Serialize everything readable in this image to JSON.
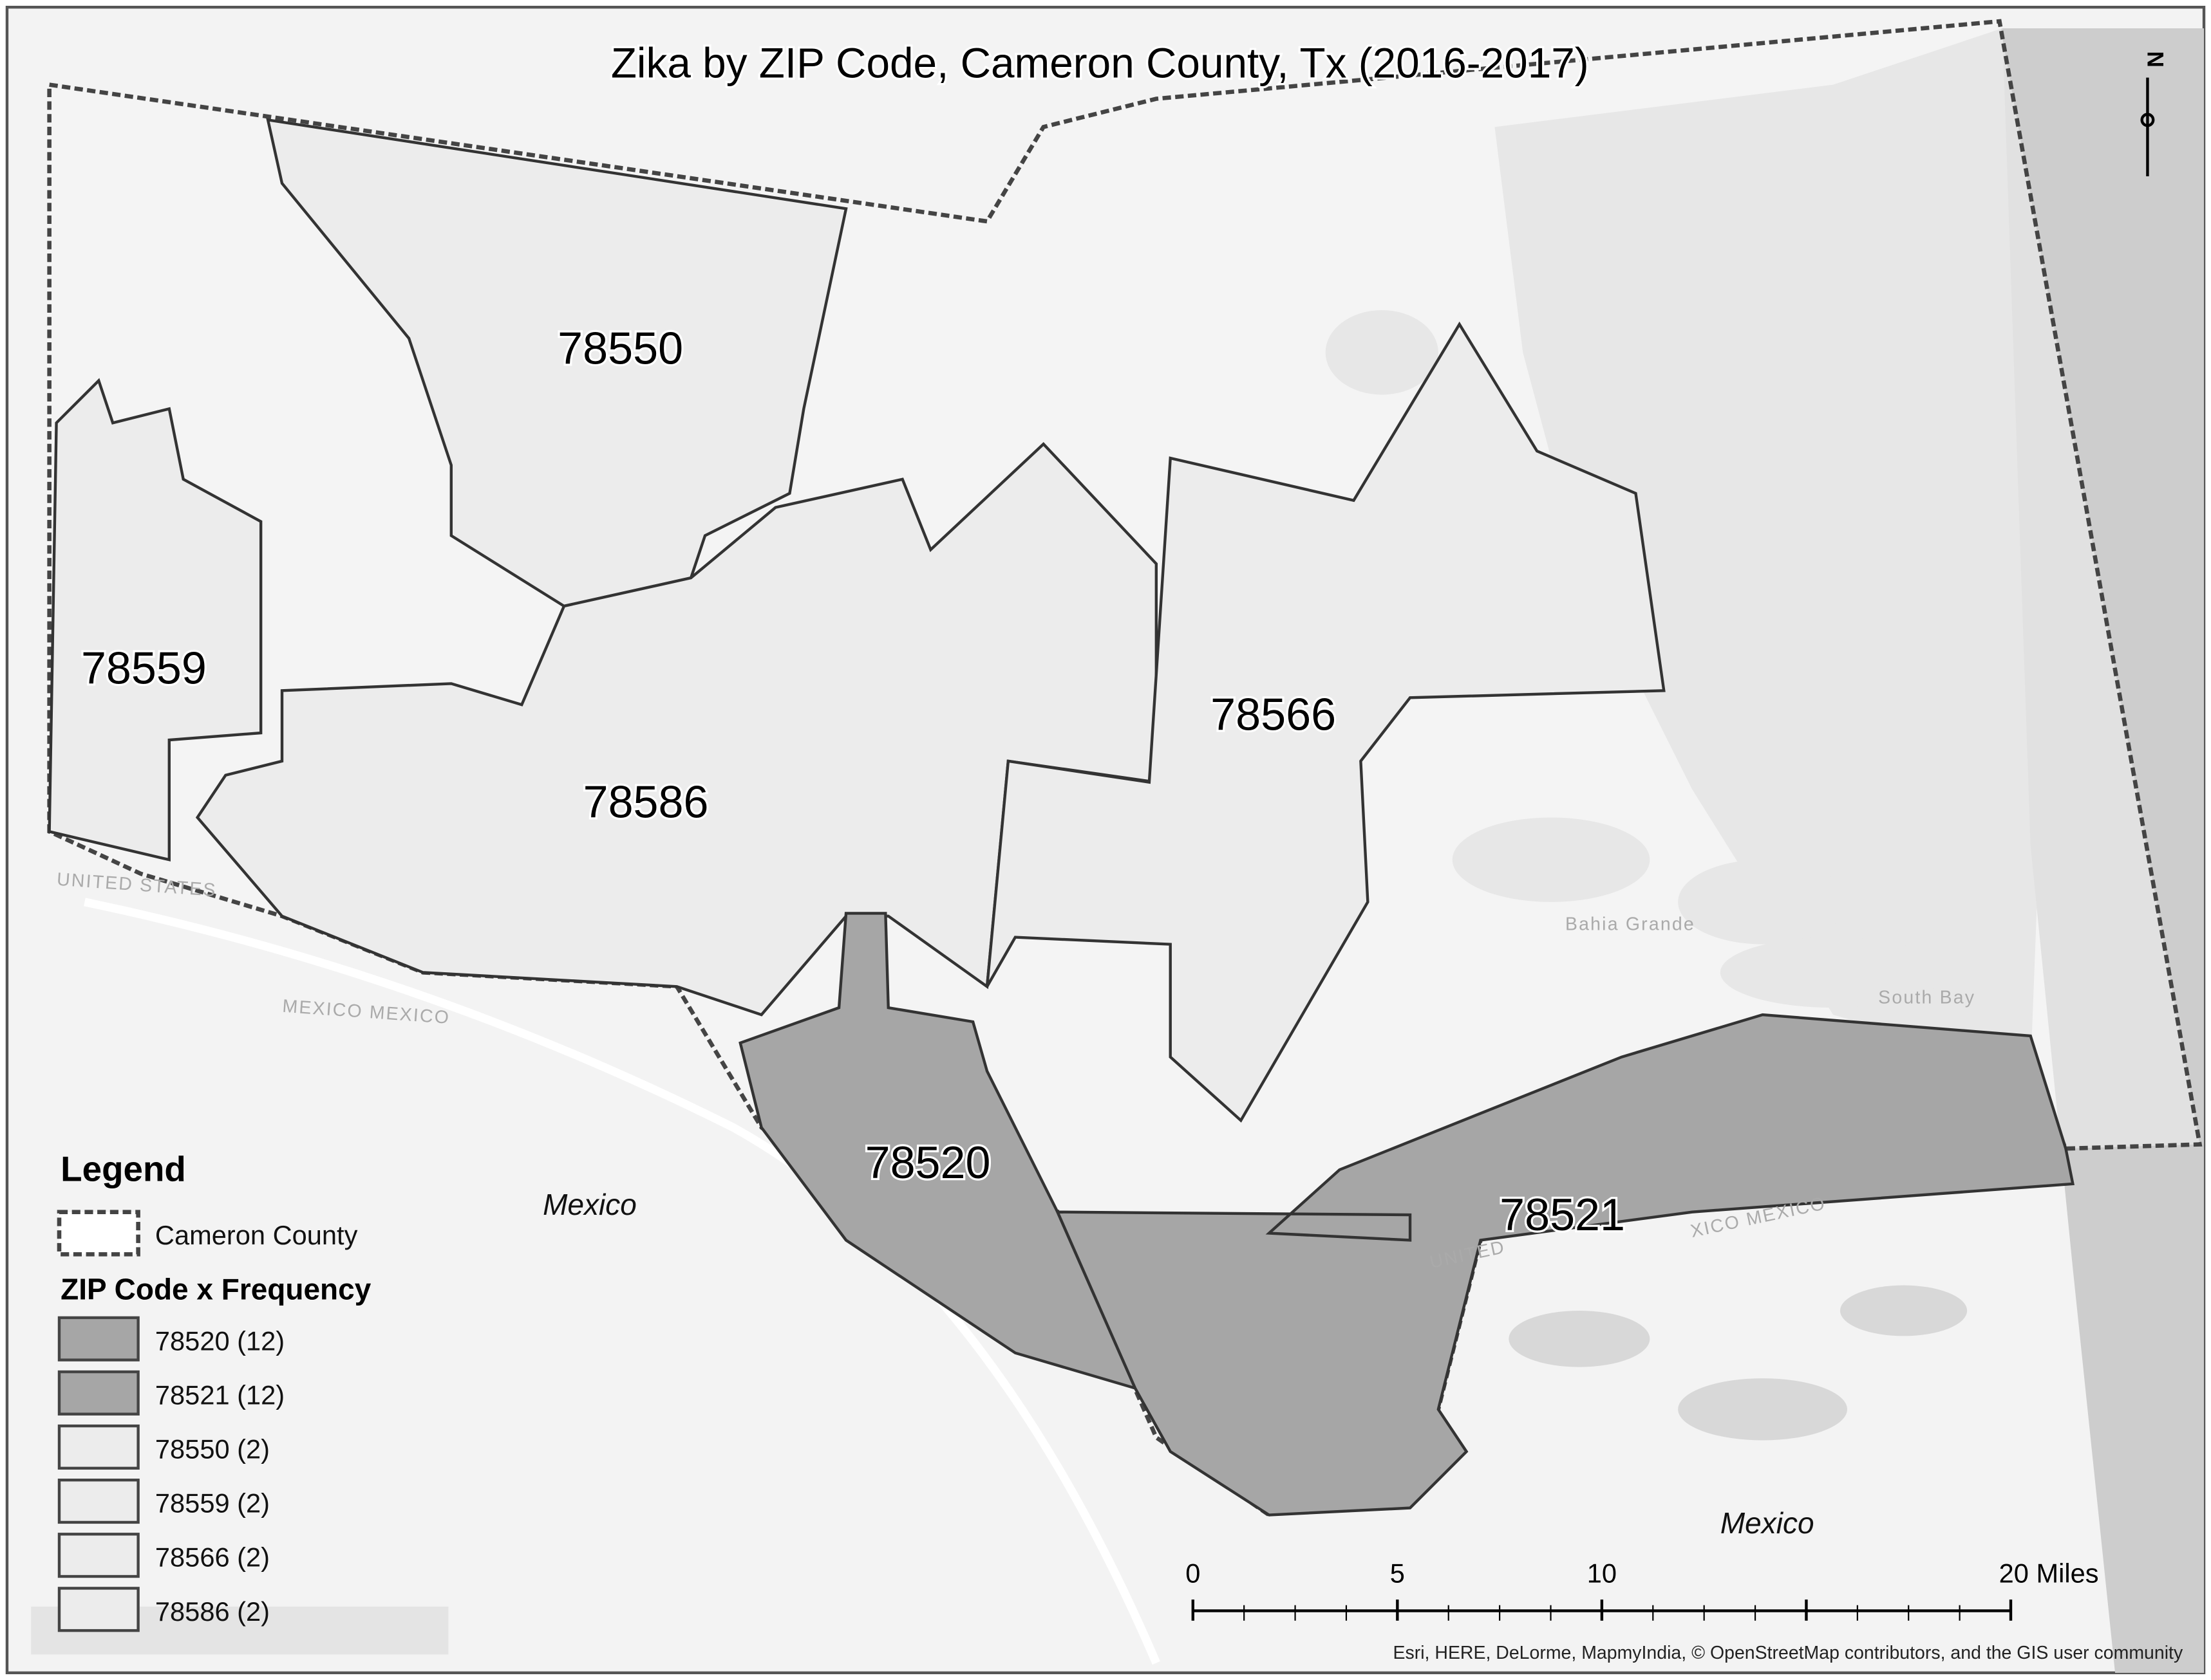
{
  "title": "Zika by ZIP Code, Cameron County, Tx (2016-2017)",
  "north_arrow": "N",
  "zip_labels": [
    "78550",
    "78559",
    "78586",
    "78566",
    "78520",
    "78521"
  ],
  "place_labels": [
    "Mexico",
    "Mexico",
    "Bahia Grande",
    "South Bay",
    "UNITED STATES",
    "MEXICO MEXICO",
    "UNITED",
    "XICO MEXICO"
  ],
  "legend": {
    "title": "Legend",
    "county": "Cameron County",
    "subtitle": "ZIP Code x Frequency",
    "items": [
      "78520 (12)",
      "78521 (12)",
      "78550 (2)",
      "78559 (2)",
      "78566 (2)",
      "78586 (2)"
    ]
  },
  "scale_bar": {
    "labels": [
      "0",
      "5",
      "10",
      "20 Miles"
    ]
  },
  "attribution": "Esri, HERE, DeLorme, MapmyIndia, © OpenStreetMap contributors, and the GIS user community"
}
